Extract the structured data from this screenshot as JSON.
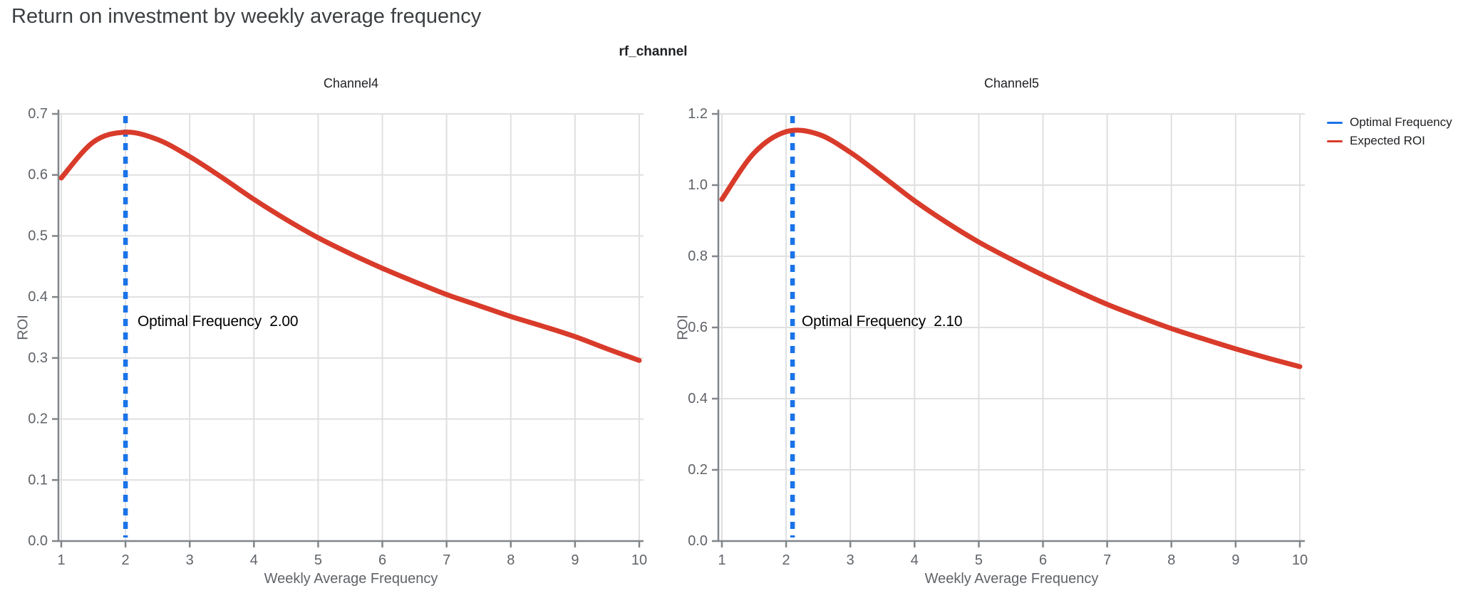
{
  "page": {
    "title": "Return on investment by weekly average frequency",
    "facet_label": "rf_channel"
  },
  "legend": {
    "items": [
      {
        "label": "Optimal Frequency",
        "color": "#1a73e8"
      },
      {
        "label": "Expected ROI",
        "color": "#d93b2b"
      }
    ]
  },
  "colors": {
    "background": "#ffffff",
    "title_text": "#3c4043",
    "axis_line": "#80868b",
    "tick_text": "#5f6368",
    "gridline": "#e0e0e0",
    "annotation_text": "#000000",
    "roi_curve": "#d93b2b",
    "optimal_line": "#1a73e8"
  },
  "chart_data": [
    {
      "type": "line",
      "title": "Channel4",
      "xlabel": "Weekly Average Frequency",
      "ylabel": "ROI",
      "xlim": [
        1,
        10
      ],
      "ylim": [
        0,
        0.7
      ],
      "xticks": [
        1,
        2,
        3,
        4,
        5,
        6,
        7,
        8,
        9,
        10
      ],
      "ytick_labels": [
        "0.0",
        "0.1",
        "0.2",
        "0.3",
        "0.4",
        "0.5",
        "0.6",
        "0.7"
      ],
      "grid": true,
      "optimal_frequency": {
        "value": 2.0,
        "label": "Optimal Frequency  2.00",
        "color": "#1a73e8"
      },
      "series": [
        {
          "name": "Expected ROI",
          "color": "#d93b2b",
          "x": [
            1,
            1.5,
            2,
            2.5,
            3,
            3.5,
            4,
            4.5,
            5,
            5.5,
            6,
            6.5,
            7,
            7.5,
            8,
            8.5,
            9,
            9.5,
            10
          ],
          "y": [
            0.595,
            0.654,
            0.67,
            0.658,
            0.63,
            0.596,
            0.56,
            0.527,
            0.497,
            0.471,
            0.447,
            0.425,
            0.404,
            0.386,
            0.368,
            0.352,
            0.335,
            0.315,
            0.296
          ]
        }
      ]
    },
    {
      "type": "line",
      "title": "Channel5",
      "xlabel": "Weekly Average Frequency",
      "ylabel": "ROI",
      "xlim": [
        1,
        10
      ],
      "ylim": [
        0,
        1.2
      ],
      "xticks": [
        1,
        2,
        3,
        4,
        5,
        6,
        7,
        8,
        9,
        10
      ],
      "ytick_labels": [
        "0.0",
        "0.2",
        "0.4",
        "0.6",
        "0.8",
        "1.0",
        "1.2"
      ],
      "grid": true,
      "optimal_frequency": {
        "value": 2.1,
        "label": "Optimal Frequency  2.10",
        "color": "#1a73e8"
      },
      "series": [
        {
          "name": "Expected ROI",
          "color": "#d93b2b",
          "x": [
            1,
            1.5,
            2,
            2.5,
            3,
            3.5,
            4,
            4.5,
            5,
            5.5,
            6,
            6.5,
            7,
            7.5,
            8,
            8.5,
            9,
            9.5,
            10
          ],
          "y": [
            0.96,
            1.09,
            1.15,
            1.143,
            1.092,
            1.025,
            0.956,
            0.895,
            0.84,
            0.792,
            0.747,
            0.705,
            0.665,
            0.63,
            0.597,
            0.568,
            0.54,
            0.514,
            0.49
          ]
        }
      ]
    }
  ]
}
